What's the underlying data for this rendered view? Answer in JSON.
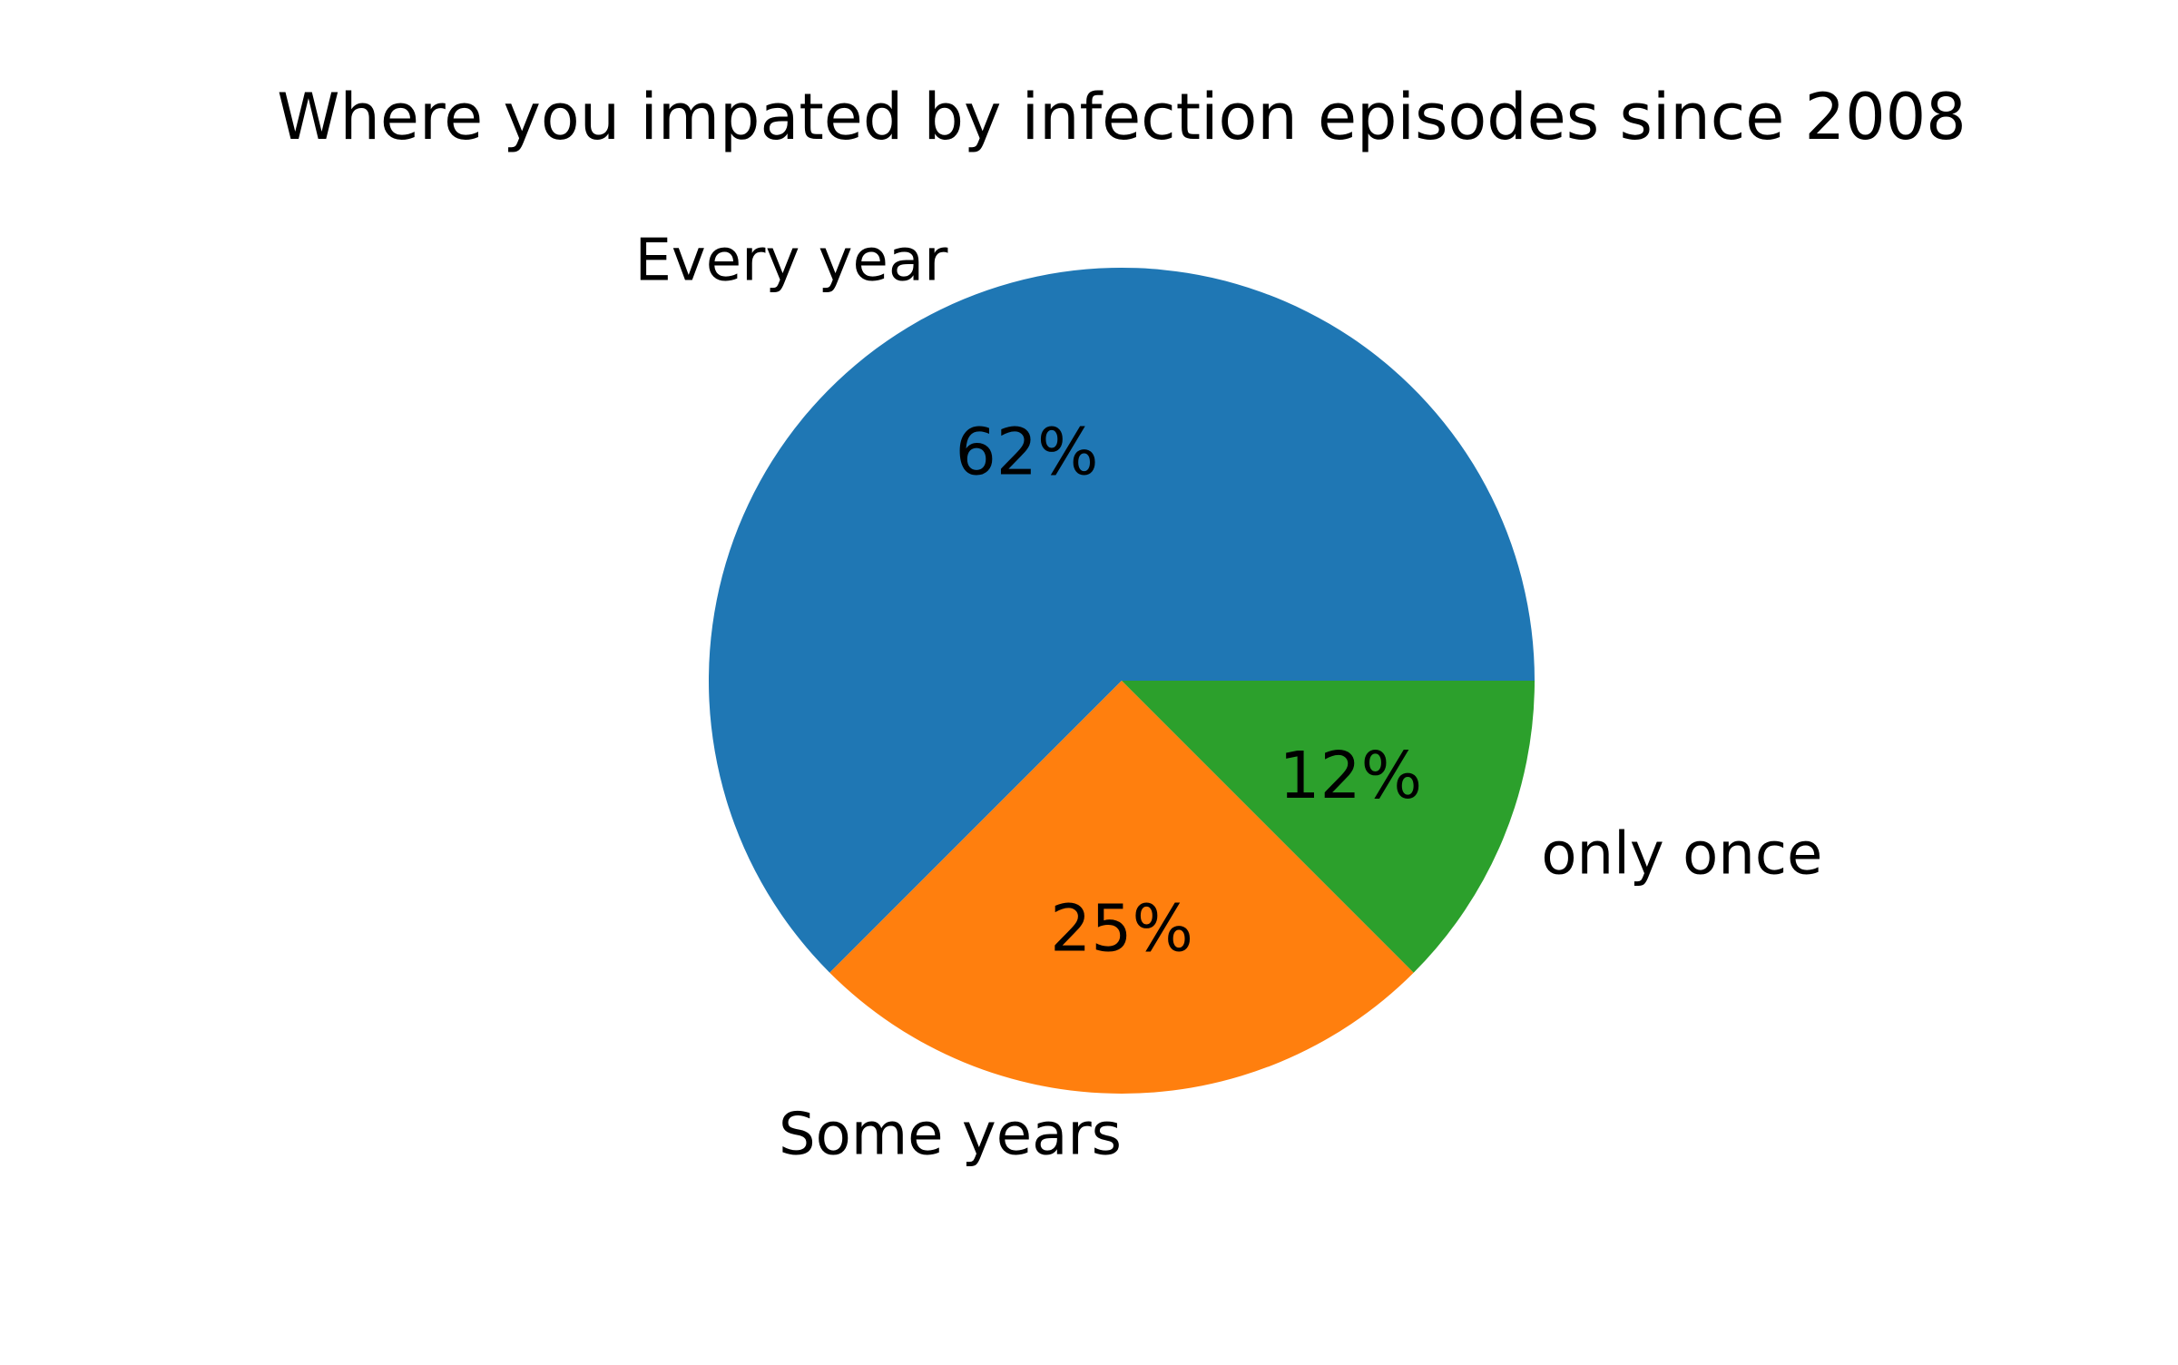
{
  "chart_data": {
    "type": "pie",
    "title": "Where you impated by infection episodes since 2008",
    "categories": [
      "Every year",
      "Some years",
      "only once"
    ],
    "values": [
      62.5,
      25,
      12.5
    ],
    "value_labels": [
      "62%",
      "25%",
      "12%"
    ],
    "colors": [
      "#1f77b4",
      "#ff7f0e",
      "#2ca02c"
    ],
    "legend": "none"
  }
}
